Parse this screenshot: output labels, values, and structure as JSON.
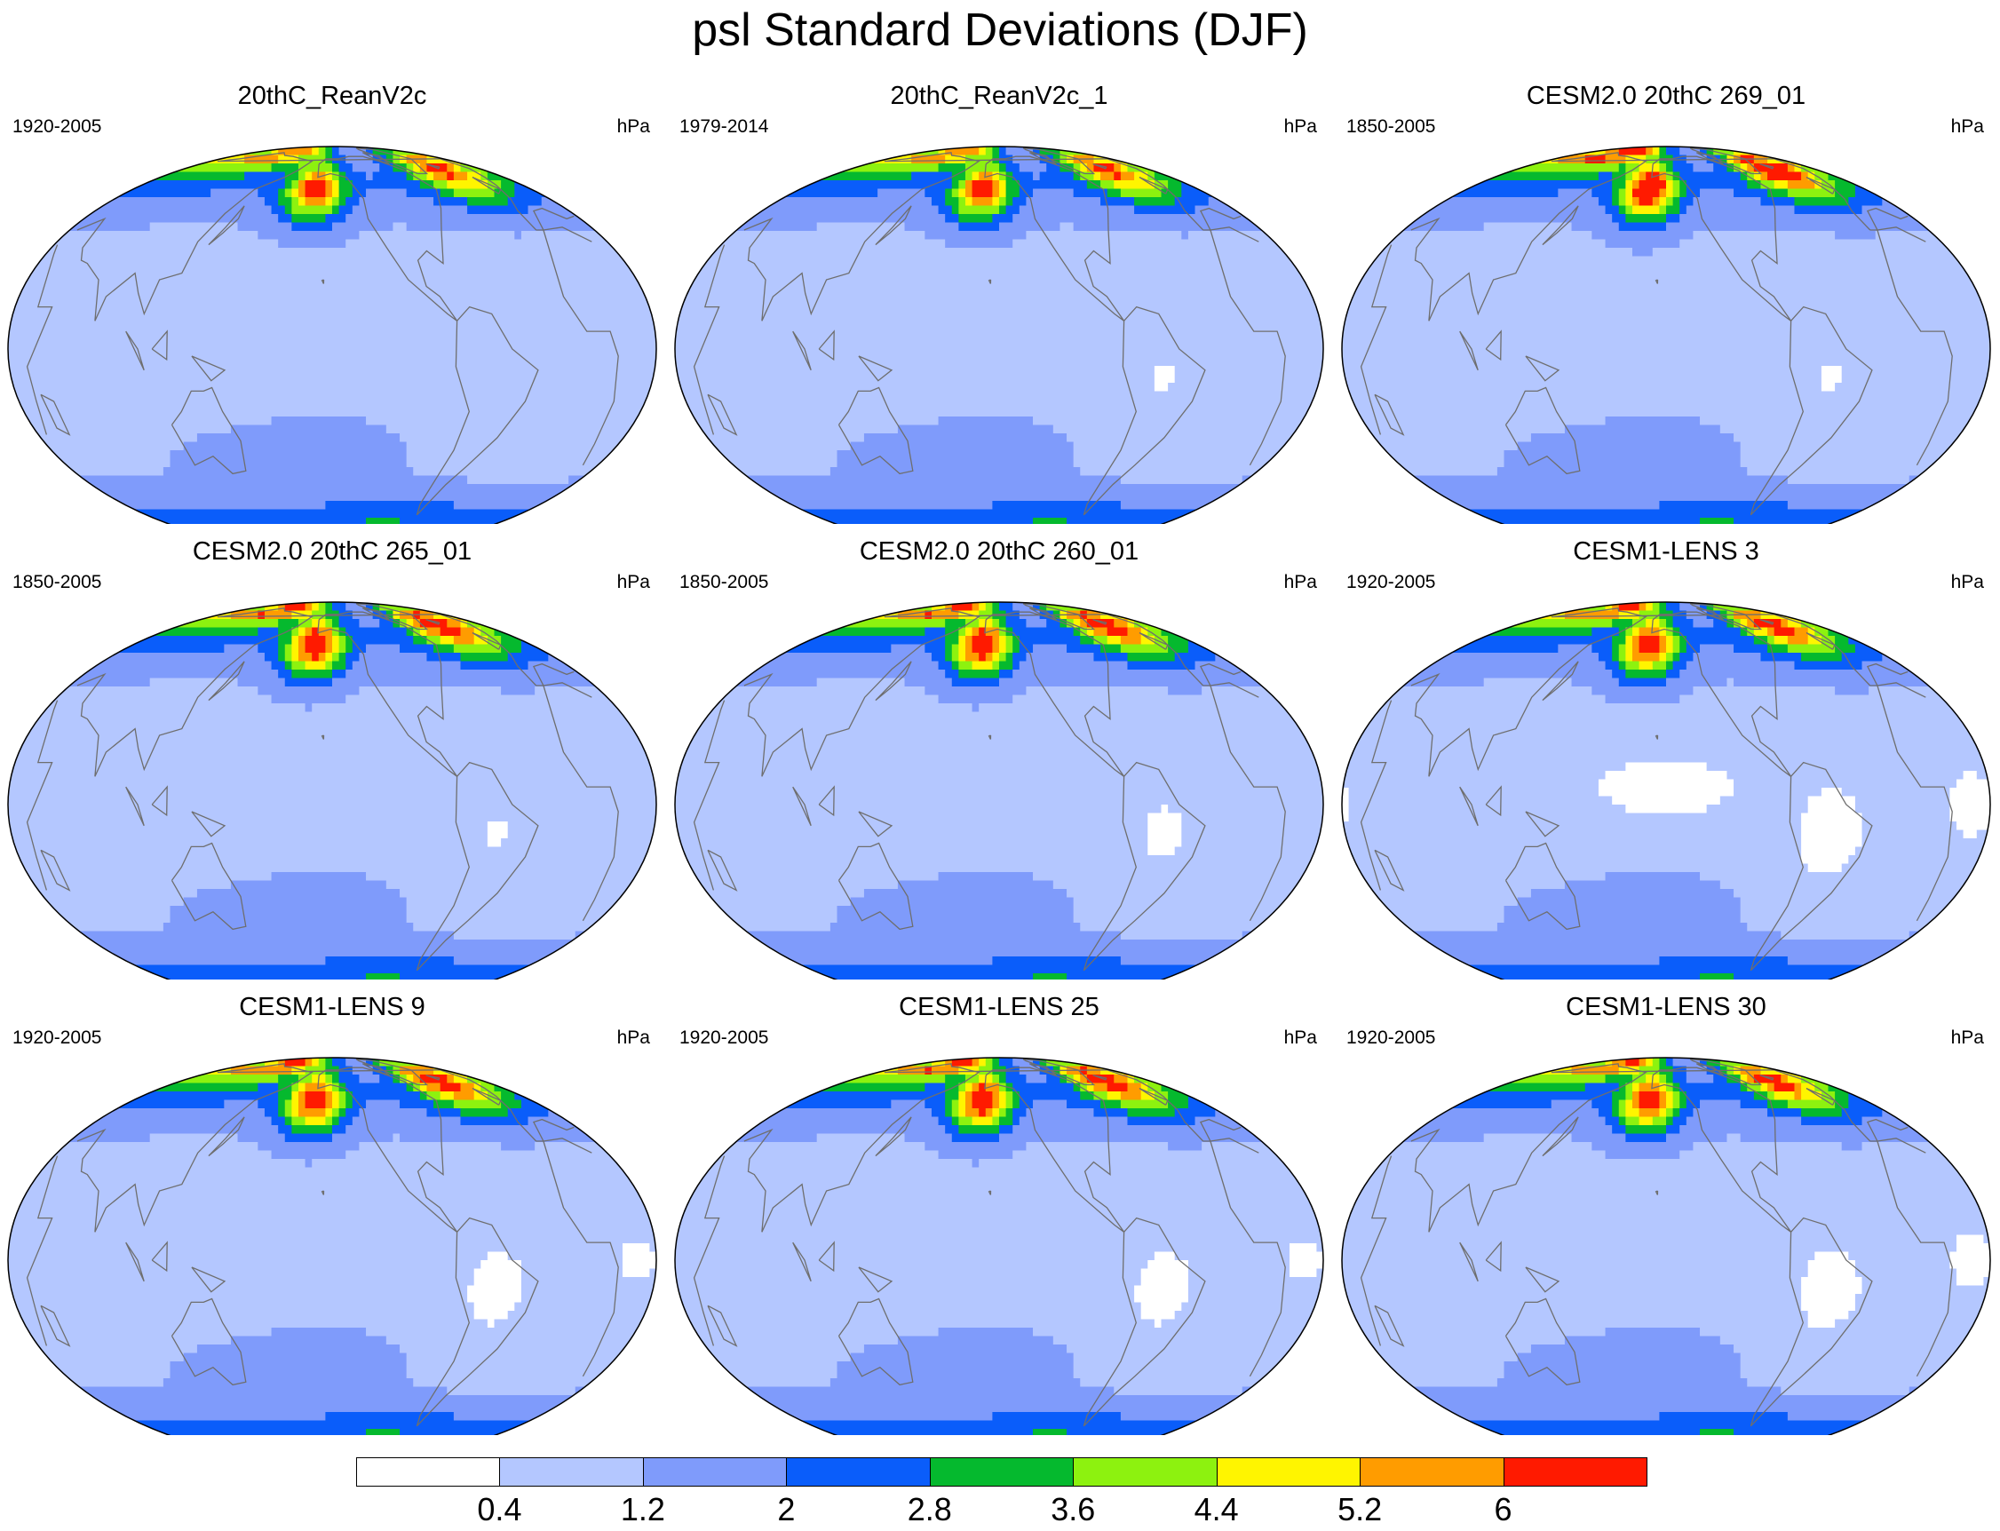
{
  "title": "psl Standard Deviations (DJF)",
  "colorbar": {
    "levels": [
      "0.4",
      "1.2",
      "2",
      "2.8",
      "3.6",
      "4.4",
      "5.2",
      "6"
    ],
    "colors": [
      "#ffffff",
      "#b4c7ff",
      "#7f9bfb",
      "#0a5dfa",
      "#05b92e",
      "#8df20f",
      "#fff500",
      "#ff9c00",
      "#ff1a00"
    ]
  },
  "panels": [
    {
      "title": "20thC_ReanV2c",
      "years": "1920-2005",
      "units": "hPa",
      "amp": 1.0,
      "white": 0.0
    },
    {
      "title": "20thC_ReanV2c_1",
      "years": "1979-2014",
      "units": "hPa",
      "amp": 1.0,
      "white": 0.5
    },
    {
      "title": "CESM2.0 20thC 269_01",
      "years": "1850-2005",
      "units": "hPa",
      "amp": 1.15,
      "white": 0.5
    },
    {
      "title": "CESM2.0 20thC 265_01",
      "years": "1850-2005",
      "units": "hPa",
      "amp": 1.12,
      "white": 0.5
    },
    {
      "title": "CESM2.0 20thC 260_01",
      "years": "1850-2005",
      "units": "hPa",
      "amp": 1.12,
      "white": 0.6
    },
    {
      "title": "CESM1-LENS 3",
      "years": "1920-2005",
      "units": "hPa",
      "amp": 1.08,
      "white": 1.0
    },
    {
      "title": "CESM1-LENS 9",
      "years": "1920-2005",
      "units": "hPa",
      "amp": 1.1,
      "white": 0.8
    },
    {
      "title": "CESM1-LENS 25",
      "years": "1920-2005",
      "units": "hPa",
      "amp": 1.12,
      "white": 0.8
    },
    {
      "title": "CESM1-LENS 30",
      "years": "1920-2005",
      "units": "hPa",
      "amp": 1.05,
      "white": 0.9
    }
  ]
}
